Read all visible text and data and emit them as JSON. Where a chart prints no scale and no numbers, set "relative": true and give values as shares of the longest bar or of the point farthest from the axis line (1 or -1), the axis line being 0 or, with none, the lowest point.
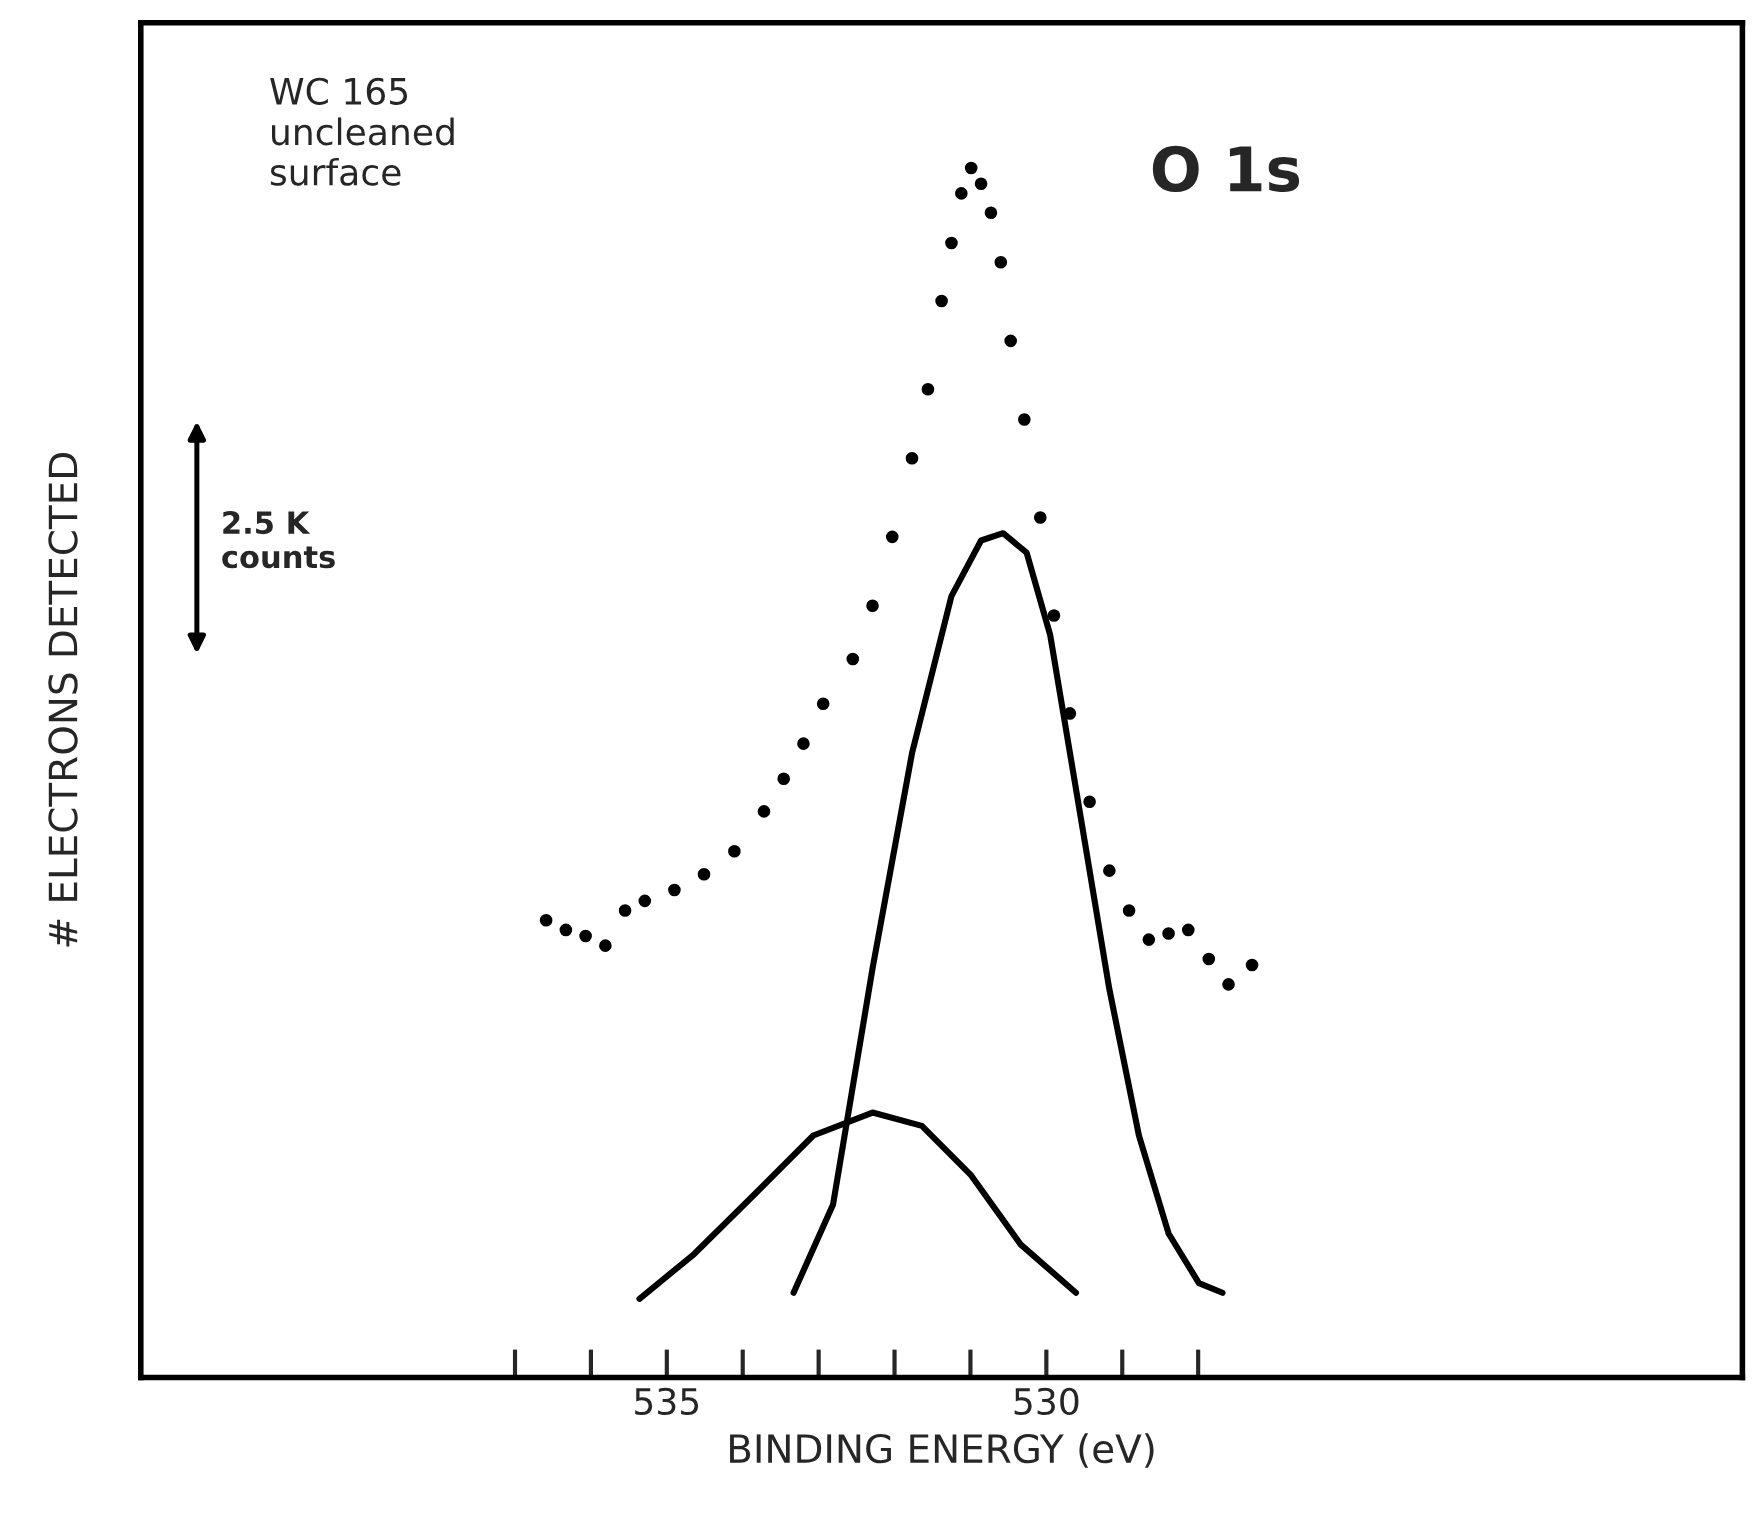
{
  "chart_data": {
    "type": "line",
    "relative": true,
    "xlabel": "BINDING ENERGY (eV)",
    "ylabel": "# ELECTRONS DETECTED",
    "annotations": [
      "WC 165\nuncleaned\nsurface",
      "O 1s",
      "2.5 K\ncounts"
    ],
    "xlim": [
      541.93,
      520.83
    ],
    "xticks": [
      {
        "value": 537,
        "label": null
      },
      {
        "value": 536,
        "label": null
      },
      535,
      {
        "value": 534,
        "label": null
      },
      {
        "value": 533,
        "label": null
      },
      {
        "value": 532,
        "label": null
      },
      {
        "value": 531,
        "label": null
      },
      530,
      {
        "value": 529,
        "label": null
      },
      {
        "value": 528,
        "label": null
      }
    ],
    "tick_labels": "x",
    "grid": false,
    "series": [
      {
        "type": "scatter",
        "color": "#000000",
        "marker": "circle",
        "x": [
          536.59,
          536.33,
          536.07,
          535.81,
          535.55,
          535.29,
          534.9,
          534.51,
          534.11,
          533.72,
          533.46,
          533.2,
          532.94,
          532.55,
          532.29,
          532.03,
          531.77,
          531.56,
          531.38,
          531.25,
          531.12,
          530.99,
          530.86,
          530.73,
          530.6,
          530.47,
          530.29,
          530.08,
          529.9,
          529.69,
          529.43,
          529.17,
          528.91,
          528.65,
          528.39,
          528.13,
          527.86,
          527.6,
          527.29
        ],
        "values": [
          0.378,
          0.37,
          0.365,
          0.357,
          0.386,
          0.394,
          0.403,
          0.416,
          0.435,
          0.468,
          0.495,
          0.524,
          0.557,
          0.594,
          0.638,
          0.695,
          0.76,
          0.817,
          0.89,
          0.938,
          0.979,
          1,
          0.987,
          0.963,
          0.922,
          0.857,
          0.792,
          0.711,
          0.63,
          0.549,
          0.476,
          0.419,
          0.386,
          0.362,
          0.367,
          0.37,
          0.346,
          0.325,
          0.341
        ]
      },
      {
        "color": "#000000",
        "line_style": "solid",
        "x": [
          533.33,
          532.81,
          532.29,
          531.77,
          531.25,
          530.86,
          530.57,
          530.26,
          529.95,
          529.56,
          529.17,
          528.78,
          528.39,
          527.99,
          527.68
        ],
        "values": [
          0.07,
          0.143,
          0.338,
          0.516,
          0.646,
          0.692,
          0.698,
          0.682,
          0.614,
          0.468,
          0.321,
          0.2,
          0.119,
          0.078,
          0.07
        ]
      },
      {
        "color": "#000000",
        "line_style": "solid",
        "x": [
          535.36,
          534.64,
          533.85,
          533.07,
          532.29,
          531.64,
          530.99,
          530.34,
          529.61
        ],
        "values": [
          0.065,
          0.102,
          0.151,
          0.2,
          0.219,
          0.208,
          0.167,
          0.11,
          0.07
        ]
      }
    ]
  }
}
